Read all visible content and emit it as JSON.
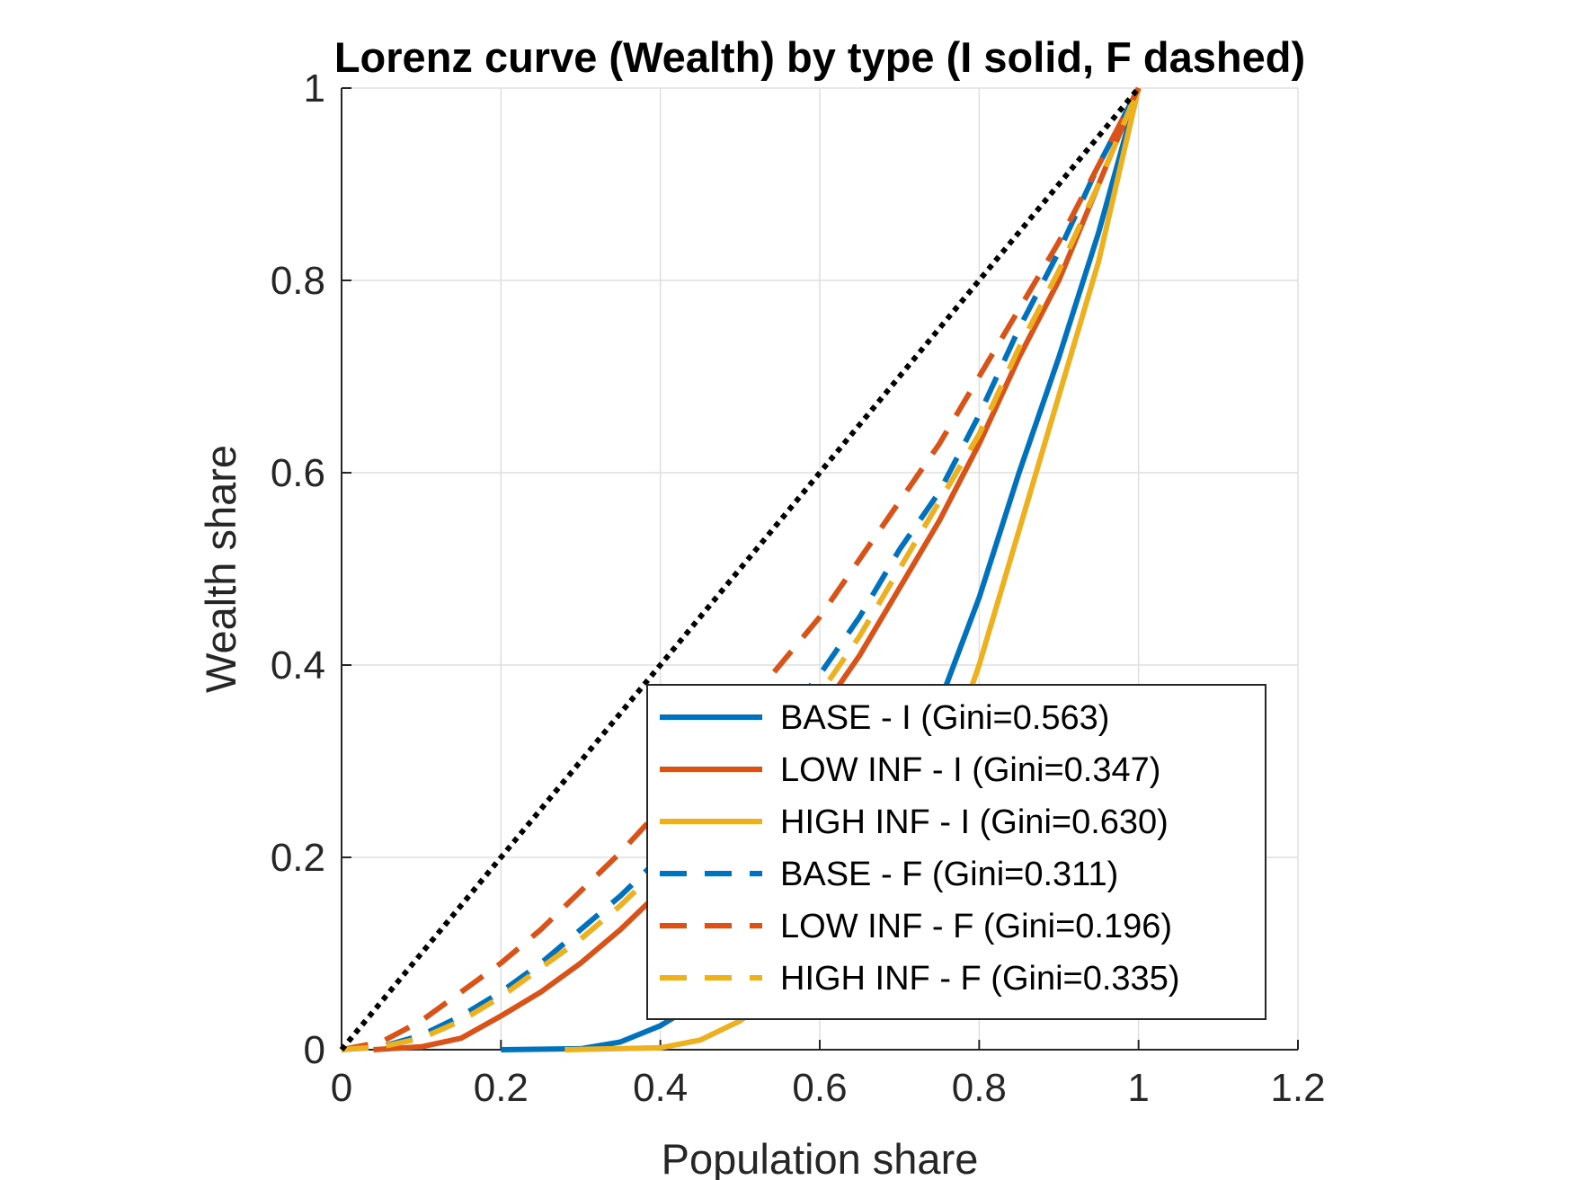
{
  "chart_data": {
    "type": "line",
    "title": "Lorenz curve (Wealth) by type (I solid, F dashed)",
    "xlabel": "Population share",
    "ylabel": "Wealth share",
    "xlim": [
      0,
      1.2
    ],
    "ylim": [
      0,
      1
    ],
    "xticks": [
      0,
      0.2,
      0.4,
      0.6,
      0.8,
      1,
      1.2
    ],
    "xtick_labels": [
      "0",
      "0.2",
      "0.4",
      "0.6",
      "0.8",
      "1",
      "1.2"
    ],
    "yticks": [
      0,
      0.2,
      0.4,
      0.6,
      0.8,
      1
    ],
    "ytick_labels": [
      "0",
      "0.2",
      "0.4",
      "0.6",
      "0.8",
      "1"
    ],
    "grid": true,
    "legend_position": "bottom-right",
    "equality_line": {
      "x": [
        0,
        1
      ],
      "y": [
        0,
        1
      ],
      "color": "#000000",
      "style": "dotted"
    },
    "series": [
      {
        "name": "BASE - I (Gini=0.563)",
        "color": "#0072BD",
        "style": "solid",
        "x": [
          0.2,
          0.3,
          0.35,
          0.4,
          0.45,
          0.5,
          0.55,
          0.6,
          0.65,
          0.7,
          0.75,
          0.8,
          0.85,
          0.9,
          0.95,
          1.0
        ],
        "y": [
          0,
          0.001,
          0.008,
          0.025,
          0.05,
          0.08,
          0.11,
          0.15,
          0.205,
          0.27,
          0.36,
          0.47,
          0.6,
          0.72,
          0.85,
          1.0
        ]
      },
      {
        "name": "LOW INF - I (Gini=0.347)",
        "color": "#D95319",
        "style": "solid",
        "x": [
          0.04,
          0.1,
          0.15,
          0.2,
          0.25,
          0.3,
          0.35,
          0.4,
          0.45,
          0.5,
          0.55,
          0.6,
          0.65,
          0.7,
          0.75,
          0.8,
          0.85,
          0.9,
          0.95,
          1.0
        ],
        "y": [
          0,
          0.003,
          0.012,
          0.035,
          0.06,
          0.09,
          0.125,
          0.165,
          0.205,
          0.25,
          0.3,
          0.35,
          0.41,
          0.48,
          0.55,
          0.63,
          0.72,
          0.8,
          0.9,
          1.0
        ]
      },
      {
        "name": "HIGH INF - I (Gini=0.630)",
        "color": "#EDB120",
        "style": "solid",
        "x": [
          0.28,
          0.4,
          0.45,
          0.5,
          0.55,
          0.6,
          0.65,
          0.7,
          0.75,
          0.8,
          0.85,
          0.9,
          0.95,
          1.0
        ],
        "y": [
          0,
          0.002,
          0.01,
          0.03,
          0.06,
          0.1,
          0.14,
          0.2,
          0.28,
          0.4,
          0.54,
          0.68,
          0.82,
          1.0
        ]
      },
      {
        "name": "BASE - F (Gini=0.311)",
        "color": "#0072BD",
        "style": "dashed",
        "x": [
          0,
          0.05,
          0.1,
          0.15,
          0.2,
          0.25,
          0.3,
          0.35,
          0.4,
          0.45,
          0.5,
          0.55,
          0.6,
          0.65,
          0.7,
          0.75,
          0.8,
          0.85,
          0.9,
          0.95,
          1.0
        ],
        "y": [
          0,
          0.003,
          0.015,
          0.035,
          0.06,
          0.09,
          0.125,
          0.16,
          0.2,
          0.24,
          0.29,
          0.34,
          0.39,
          0.45,
          0.52,
          0.58,
          0.66,
          0.75,
          0.83,
          0.92,
          1.0
        ]
      },
      {
        "name": "LOW INF - F (Gini=0.196)",
        "color": "#D95319",
        "style": "dashed",
        "x": [
          0,
          0.05,
          0.1,
          0.15,
          0.2,
          0.25,
          0.3,
          0.35,
          0.4,
          0.45,
          0.5,
          0.55,
          0.6,
          0.65,
          0.7,
          0.75,
          0.8,
          0.85,
          0.9,
          0.95,
          1.0
        ],
        "y": [
          0,
          0.008,
          0.03,
          0.06,
          0.09,
          0.125,
          0.165,
          0.205,
          0.25,
          0.3,
          0.35,
          0.4,
          0.45,
          0.51,
          0.57,
          0.63,
          0.7,
          0.77,
          0.84,
          0.92,
          1.0
        ]
      },
      {
        "name": "HIGH INF - F (Gini=0.335)",
        "color": "#EDB120",
        "style": "dashed",
        "x": [
          0,
          0.05,
          0.1,
          0.15,
          0.2,
          0.25,
          0.3,
          0.35,
          0.4,
          0.45,
          0.5,
          0.55,
          0.6,
          0.65,
          0.7,
          0.75,
          0.8,
          0.85,
          0.9,
          0.95,
          1.0
        ],
        "y": [
          0,
          0.003,
          0.012,
          0.03,
          0.055,
          0.085,
          0.115,
          0.15,
          0.19,
          0.23,
          0.27,
          0.32,
          0.37,
          0.43,
          0.5,
          0.57,
          0.64,
          0.73,
          0.81,
          0.9,
          1.0
        ]
      }
    ]
  }
}
